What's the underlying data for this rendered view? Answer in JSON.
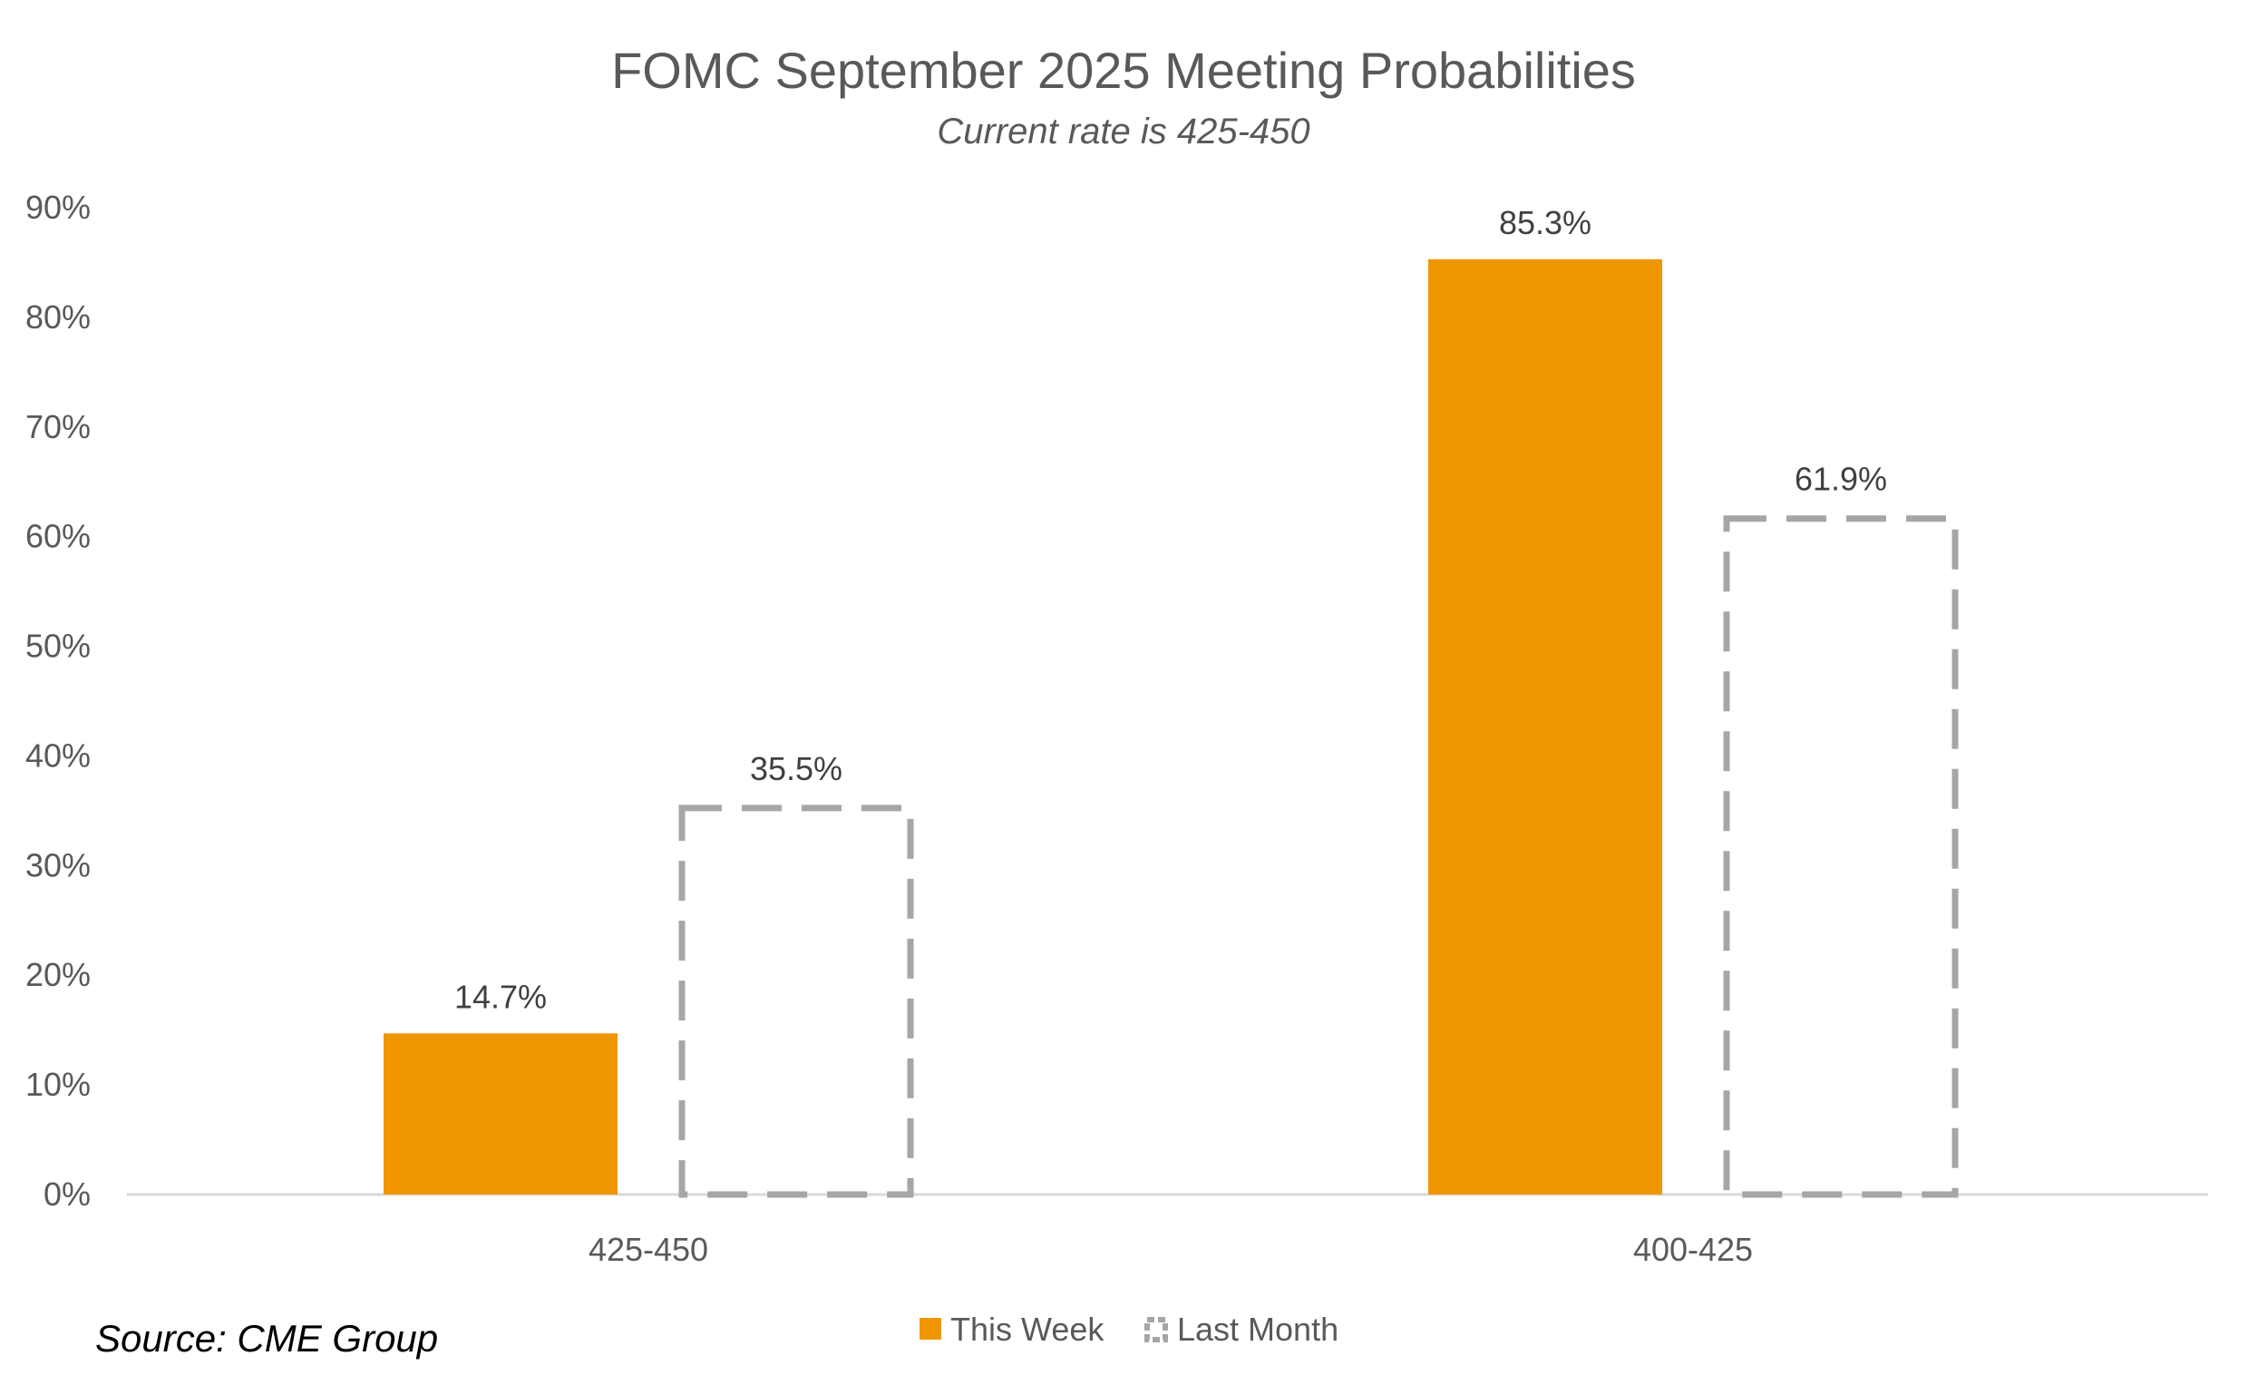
{
  "chart_data": {
    "type": "bar",
    "title": "FOMC September 2025 Meeting Probabilities",
    "subtitle": "Current rate is 425-450",
    "categories": [
      "425-450",
      "400-425"
    ],
    "series": [
      {
        "name": "This Week",
        "values": [
          14.7,
          85.3
        ],
        "color": "#F09600",
        "style": "solid"
      },
      {
        "name": "Last Month",
        "values": [
          35.5,
          61.9
        ],
        "color": "#A6A6A6",
        "style": "dashed-outline"
      }
    ],
    "data_labels": [
      [
        "14.7%",
        "85.3%"
      ],
      [
        "35.5%",
        "61.9%"
      ]
    ],
    "ylim": [
      0,
      90
    ],
    "yticks": [
      "0%",
      "10%",
      "20%",
      "30%",
      "40%",
      "50%",
      "60%",
      "70%",
      "80%",
      "90%"
    ],
    "grid": false,
    "legend_placement": "bottom-center",
    "source": "Source: CME Group"
  }
}
